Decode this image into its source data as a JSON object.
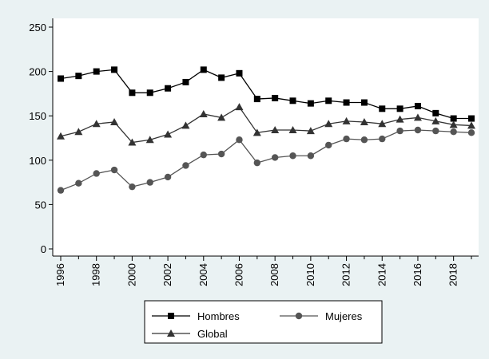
{
  "chart_data": {
    "type": "line",
    "title": "",
    "xlabel": "",
    "ylabel": "",
    "x": [
      1996,
      1997,
      1998,
      1999,
      2000,
      2001,
      2002,
      2003,
      2004,
      2005,
      2006,
      2007,
      2008,
      2009,
      2010,
      2011,
      2012,
      2013,
      2014,
      2015,
      2016,
      2017,
      2018,
      2019
    ],
    "xticks": [
      "1996",
      "1998",
      "2000",
      "2002",
      "2004",
      "2006",
      "2008",
      "2010",
      "2012",
      "2014",
      "2016",
      "2018"
    ],
    "yticks": [
      "0",
      "50",
      "100",
      "150",
      "200",
      "250"
    ],
    "ylim": [
      0,
      250
    ],
    "series": [
      {
        "name": "Hombres",
        "marker": "square",
        "color": "#000000",
        "values": [
          192,
          195,
          200,
          202,
          176,
          176,
          181,
          188,
          202,
          193,
          198,
          169,
          170,
          167,
          164,
          167,
          165,
          165,
          158,
          158,
          161,
          153,
          147,
          147
        ]
      },
      {
        "name": "Mujeres",
        "marker": "circle",
        "color": "#555555",
        "values": [
          66,
          74,
          85,
          89,
          70,
          75,
          81,
          94,
          106,
          107,
          123,
          97,
          103,
          105,
          105,
          117,
          124,
          123,
          124,
          133,
          134,
          133,
          132,
          131
        ]
      },
      {
        "name": "Global",
        "marker": "triangle",
        "color": "#333333",
        "values": [
          127,
          132,
          141,
          143,
          120,
          123,
          129,
          139,
          152,
          148,
          160,
          131,
          134,
          134,
          133,
          141,
          144,
          143,
          141,
          146,
          148,
          144,
          140,
          139
        ]
      }
    ],
    "grid": false,
    "legend": {
      "placement": "bottom",
      "entries": [
        "Hombres",
        "Mujeres",
        "Global"
      ]
    }
  }
}
